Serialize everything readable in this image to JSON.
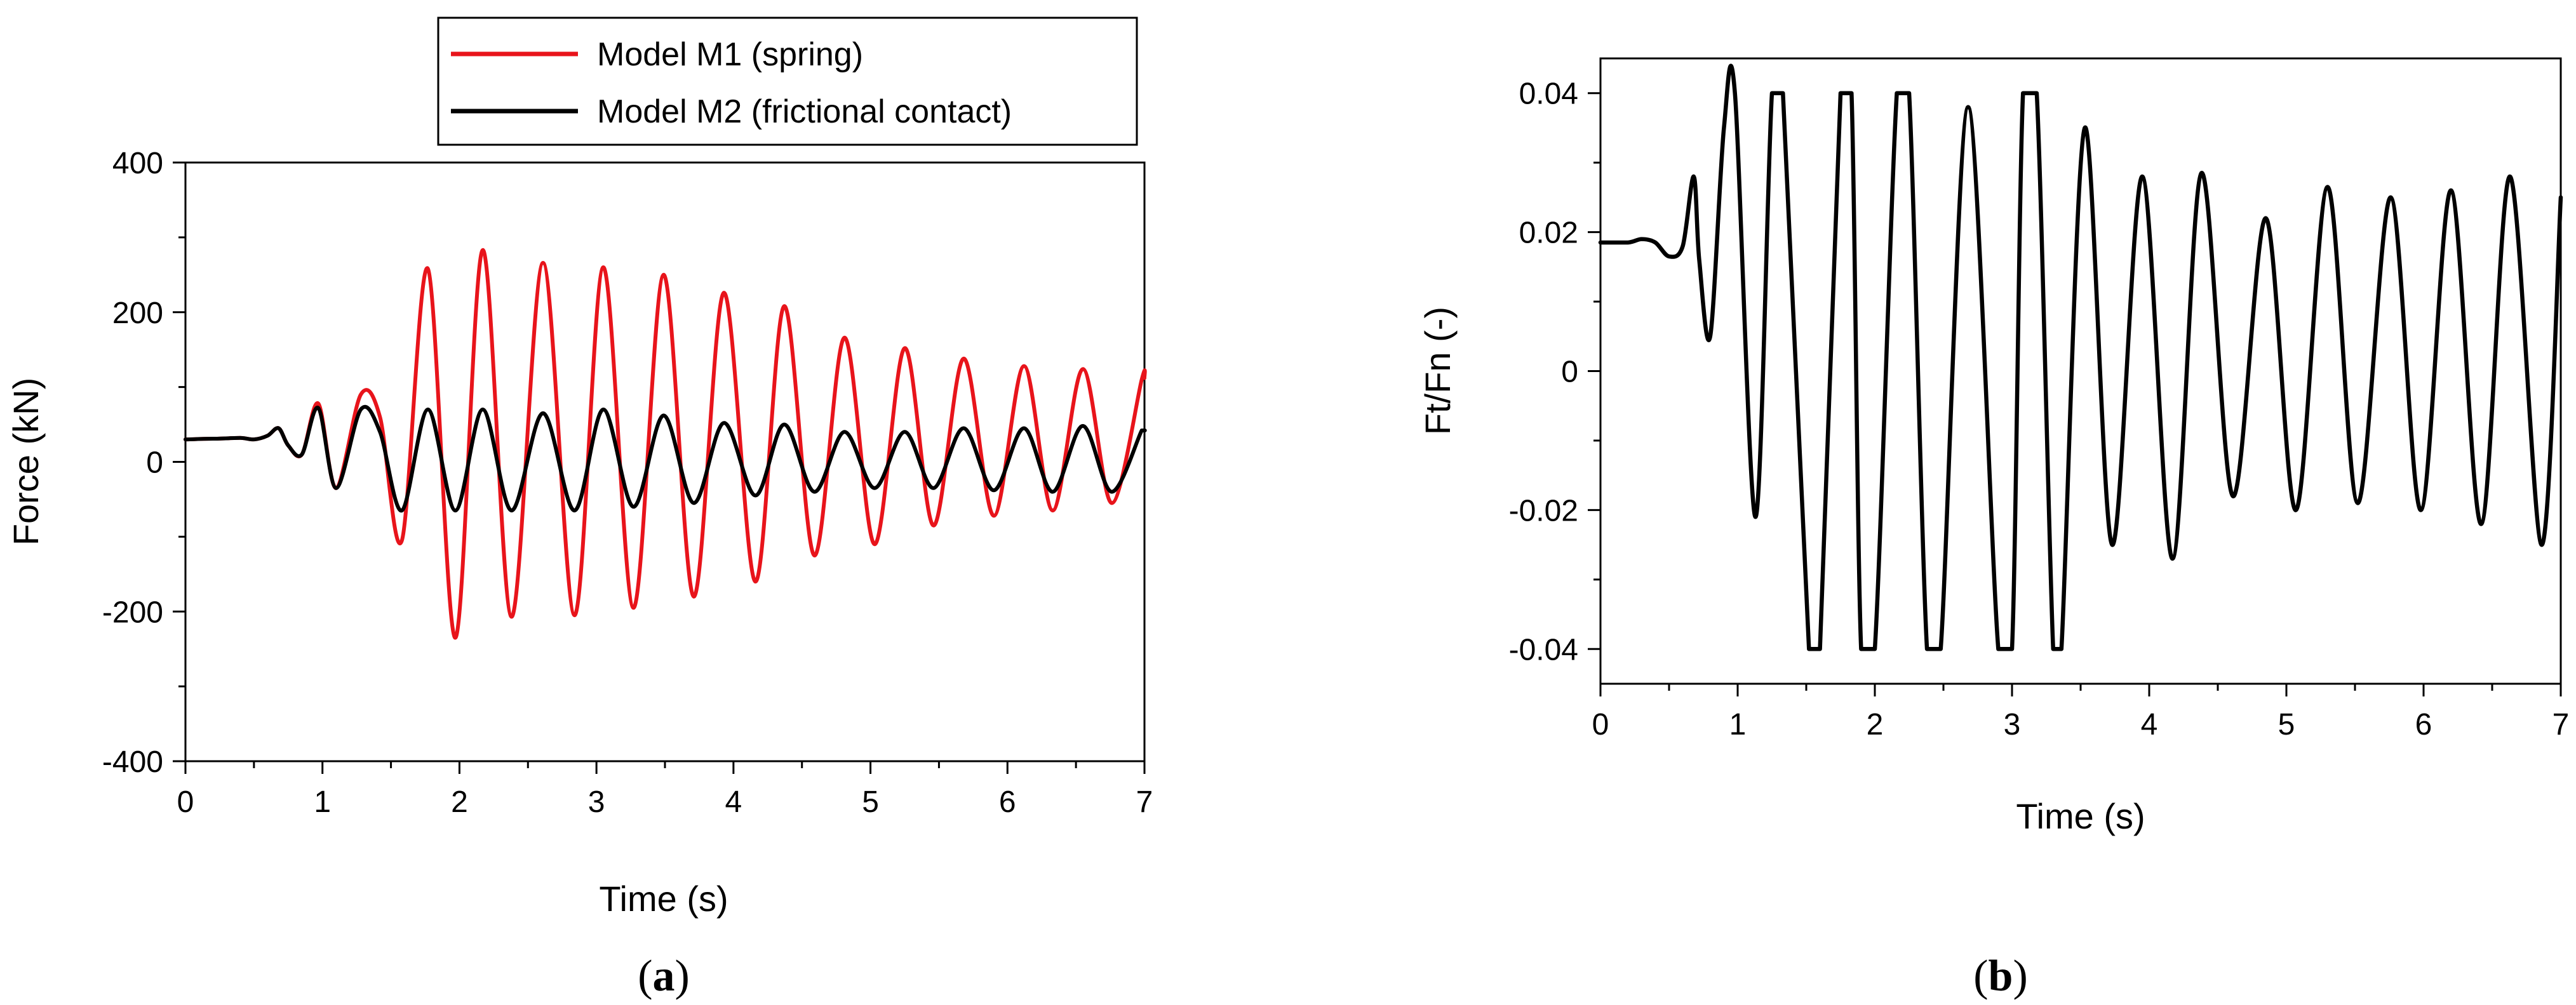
{
  "chart_data": [
    {
      "type": "line",
      "panel_label_open": "(",
      "panel_label": "a",
      "panel_label_close": ")",
      "xlabel": "Time (s)",
      "ylabel": "Force (kN)",
      "xlim": [
        0,
        7
      ],
      "ylim": [
        -400,
        400
      ],
      "xticks": [
        0,
        1,
        2,
        3,
        4,
        5,
        6,
        7
      ],
      "yticks": [
        -400,
        -200,
        0,
        200,
        400
      ],
      "grid": false,
      "legend_position": "top-right, above plot",
      "series": [
        {
          "name": "Model M1 (spring)",
          "color": "#e8141b",
          "x": [
            0,
            0.2,
            0.4,
            0.5,
            0.6,
            0.68,
            0.75,
            0.85,
            0.97,
            1.1,
            1.28,
            1.42,
            1.58,
            1.77,
            1.97,
            2.17,
            2.38,
            2.61,
            2.84,
            3.05,
            3.27,
            3.49,
            3.71,
            3.93,
            4.16,
            4.37,
            4.59,
            4.81,
            5.03,
            5.25,
            5.46,
            5.68,
            5.9,
            6.12,
            6.33,
            6.55,
            6.76,
            6.98,
            7.0
          ],
          "y": [
            30,
            31,
            32,
            30,
            35,
            45,
            22,
            10,
            78,
            -35,
            90,
            60,
            -105,
            258,
            -235,
            283,
            -207,
            266,
            -205,
            260,
            -195,
            250,
            -180,
            226,
            -160,
            208,
            -125,
            166,
            -110,
            152,
            -85,
            138,
            -72,
            128,
            -65,
            124,
            -55,
            110,
            112
          ]
        },
        {
          "name": "Model M2 (frictional contact)",
          "color": "#000000",
          "x": [
            0,
            0.2,
            0.4,
            0.5,
            0.6,
            0.68,
            0.75,
            0.85,
            0.97,
            1.1,
            1.28,
            1.42,
            1.58,
            1.77,
            1.97,
            2.17,
            2.38,
            2.61,
            2.84,
            3.05,
            3.27,
            3.49,
            3.71,
            3.93,
            4.16,
            4.37,
            4.59,
            4.81,
            5.03,
            5.25,
            5.46,
            5.68,
            5.9,
            6.12,
            6.33,
            6.55,
            6.76,
            6.98,
            7.0
          ],
          "y": [
            30,
            31,
            32,
            30,
            35,
            45,
            22,
            10,
            72,
            -35,
            70,
            40,
            -65,
            70,
            -65,
            70,
            -65,
            65,
            -65,
            70,
            -60,
            62,
            -55,
            52,
            -45,
            50,
            -40,
            40,
            -35,
            40,
            -35,
            45,
            -38,
            45,
            -40,
            48,
            -40,
            42,
            42
          ]
        }
      ]
    },
    {
      "type": "line",
      "panel_label_open": "(",
      "panel_label": "b",
      "panel_label_close": ")",
      "xlabel": "Time (s)",
      "ylabel": "Ft/Fn (-)",
      "xlim": [
        0,
        7
      ],
      "ylim": [
        -0.045,
        0.045
      ],
      "xticks": [
        0,
        1,
        2,
        3,
        4,
        5,
        6,
        7
      ],
      "yticks": [
        -0.04,
        -0.02,
        0,
        0.02,
        0.04
      ],
      "ytick_labels": [
        "-0.04",
        "-0.02",
        "0",
        "0.02",
        "0.04"
      ],
      "grid": false,
      "series": [
        {
          "color": "#000000",
          "x": [
            0,
            0.2,
            0.3,
            0.4,
            0.5,
            0.6,
            0.68,
            0.72,
            0.8,
            0.9,
            0.98,
            1.13,
            1.25,
            1.33,
            1.52,
            1.6,
            1.75,
            1.83,
            1.9,
            2.0,
            2.16,
            2.25,
            2.38,
            2.48,
            2.68,
            2.9,
            3.0,
            3.08,
            3.18,
            3.3,
            3.36,
            3.53,
            3.73,
            3.95,
            4.17,
            4.38,
            4.61,
            4.85,
            5.07,
            5.3,
            5.52,
            5.76,
            5.98,
            6.2,
            6.42,
            6.63,
            6.86,
            7.0
          ],
          "y": [
            0.0185,
            0.0185,
            0.019,
            0.0185,
            0.0165,
            0.018,
            0.028,
            0.016,
            0.005,
            0.035,
            0.04,
            -0.021,
            0.04,
            0.04,
            -0.04,
            -0.04,
            0.04,
            0.04,
            -0.04,
            -0.04,
            0.04,
            0.04,
            -0.04,
            -0.04,
            0.038,
            -0.04,
            -0.04,
            0.04,
            0.04,
            -0.04,
            -0.04,
            0.035,
            -0.025,
            0.028,
            -0.027,
            0.0285,
            -0.018,
            0.022,
            -0.02,
            0.0265,
            -0.019,
            0.025,
            -0.02,
            0.026,
            -0.022,
            0.028,
            -0.025,
            0.025
          ]
        }
      ]
    }
  ],
  "legend": {
    "entries": [
      "Model M1 (spring)",
      "Model M2 (frictional contact)"
    ]
  }
}
